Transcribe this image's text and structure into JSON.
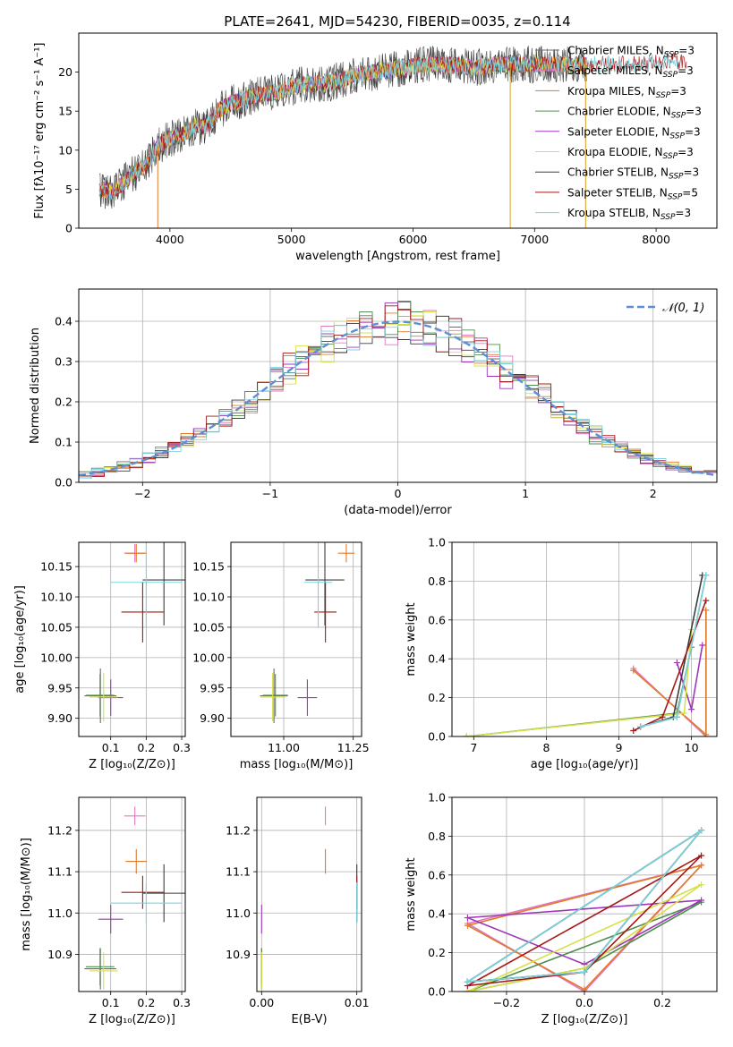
{
  "chart_data": [
    {
      "type": "line",
      "title": "PLATE=2641, MJD=54230, FIBERID=0035, z=0.114",
      "xlabel": "wavelength [Angstrom, rest frame]",
      "ylabel": "Flux [fλ10⁻¹⁷ erg cm⁻² s⁻¹ A⁻¹]",
      "xlim": [
        3250,
        8500
      ],
      "ylim": [
        0,
        25
      ],
      "xticks": [
        "4000",
        "5000",
        "6000",
        "7000",
        "8000"
      ],
      "yticks": [
        "0",
        "5",
        "10",
        "15",
        "20"
      ],
      "spectrum_envelope": {
        "x": [
          3420,
          3500,
          3600,
          3700,
          3800,
          3900,
          4000,
          4100,
          4200,
          4300,
          4400,
          4500,
          4700,
          4900,
          5100,
          5300,
          5500,
          5700,
          5900,
          6100,
          6300,
          6500,
          6700,
          6900,
          7100,
          7300,
          7500,
          7700,
          7900,
          8100,
          8250
        ],
        "y": [
          5.0,
          4.6,
          5.5,
          7.0,
          8.0,
          10.5,
          11.5,
          12.0,
          13.0,
          13.0,
          15.0,
          16.0,
          17.0,
          17.5,
          18.5,
          18.5,
          19.5,
          20.0,
          20.5,
          21.0,
          21.0,
          20.5,
          21.0,
          21.0,
          21.0,
          21.0,
          21.0,
          21.0,
          21.0,
          21.5,
          21.5
        ]
      },
      "dips": [
        3900,
        6800,
        7420
      ],
      "series": [
        {
          "name": "Chabrier MILES, N_SSP=3"
        },
        {
          "name": "Salpeter MILES, N_SSP=3"
        },
        {
          "name": "Kroupa MILES, N_SSP=3"
        },
        {
          "name": "Chabrier ELODIE, N_SSP=3"
        },
        {
          "name": "Salpeter ELODIE, N_SSP=3"
        },
        {
          "name": "Kroupa ELODIE, N_SSP=3"
        },
        {
          "name": "Chabrier STELIB, N_SSP=3"
        },
        {
          "name": "Salpeter STELIB, N_SSP=5"
        },
        {
          "name": "Kroupa STELIB, N_SSP=3"
        }
      ],
      "legend": "right"
    },
    {
      "type": "line",
      "xlabel": "(data-model)/error",
      "ylabel": "Normed distribution",
      "xlim": [
        -2.5,
        2.5
      ],
      "ylim": [
        0,
        0.48
      ],
      "xticks": [
        "−2",
        "−1",
        "0",
        "1",
        "2"
      ],
      "yticks": [
        "0.0",
        "0.1",
        "0.2",
        "0.3",
        "0.4"
      ],
      "grid": true,
      "legend": "𝒩(0, 1)",
      "legend_position": "top-right"
    },
    {
      "type": "scatter",
      "xlabel": "Z [log₁₀(Z/Z⊙)]",
      "ylabel": "age  [log₁₀(age/yr)]",
      "xlim": [
        0.01,
        0.31
      ],
      "ylim": [
        9.87,
        10.19
      ],
      "xticks": [
        "0.1",
        "0.2",
        "0.3"
      ],
      "yticks": [
        "9.90",
        "9.95",
        "10.00",
        "10.05",
        "10.10",
        "10.15"
      ],
      "grid": true
    },
    {
      "type": "scatter",
      "xlabel": "mass [log₁₀(M/M⊙)]",
      "xlim": [
        10.81,
        11.28
      ],
      "ylim": [
        9.87,
        10.19
      ],
      "xticks": [
        "11.00",
        "11.25"
      ],
      "yticks": [
        "9.90",
        "9.95",
        "10.00",
        "10.05",
        "10.10",
        "10.15"
      ],
      "grid": true
    },
    {
      "type": "line",
      "xlabel": "age  [log₁₀(age/yr)]",
      "ylabel": "mass weight",
      "xlim": [
        6.7,
        10.35
      ],
      "ylim": [
        0,
        1
      ],
      "xticks": [
        "7",
        "8",
        "9",
        "10"
      ],
      "yticks": [
        "0.0",
        "0.2",
        "0.4",
        "0.6",
        "0.8",
        "1.0"
      ],
      "grid": true
    },
    {
      "type": "scatter",
      "xlabel": "Z [log₁₀(Z/Z⊙)]",
      "ylabel": "mass [log₁₀(M/M⊙)]",
      "xlim": [
        0.01,
        0.31
      ],
      "ylim": [
        10.81,
        11.28
      ],
      "xticks": [
        "0.1",
        "0.2",
        "0.3"
      ],
      "yticks": [
        "10.9",
        "11.0",
        "11.1",
        "11.2"
      ],
      "grid": true
    },
    {
      "type": "scatter",
      "xlabel": "E(B-V)",
      "xlim": [
        -0.0005,
        0.0105
      ],
      "ylim": [
        10.81,
        11.28
      ],
      "xticks": [
        "0.00",
        "0.01"
      ],
      "yticks": [
        "10.9",
        "11.0",
        "11.1",
        "11.2"
      ],
      "grid": true
    },
    {
      "type": "line",
      "xlabel": "Z [log₁₀(Z/Z⊙)]",
      "ylabel": "mass weight",
      "xlim": [
        -0.34,
        0.34
      ],
      "ylim": [
        0,
        1
      ],
      "xticks": [
        "−0.2",
        "0.0",
        "0.2"
      ],
      "yticks": [
        "0.0",
        "0.2",
        "0.4",
        "0.6",
        "0.8",
        "1.0"
      ],
      "grid": true
    }
  ],
  "series_colors": [
    "#6b6b6b",
    "#e377c2",
    "#e07b2a",
    "#4f8f4f",
    "#9e37b8",
    "#d6e04a",
    "#3c3c3c",
    "#a31818",
    "#7ad4df"
  ],
  "normal_curve_color": "#5b8fd6",
  "fits": [
    {
      "Z": 0.071,
      "age": 9.937,
      "mass": 10.865,
      "ebv": 0.0,
      "dZ": 0.045,
      "dage": 0.09,
      "dmass": 0.1,
      "ages": [
        9.3,
        9.8,
        10.2
      ],
      "Zs": [
        -0.3,
        0.0,
        0.3
      ],
      "w": [
        0.05,
        0.1,
        0.83
      ]
    },
    {
      "Z": 0.168,
      "age": 10.172,
      "mass": 11.235,
      "ebv": 0.0067,
      "dZ": 0.03,
      "dage": 0.03,
      "dmass": 0.045,
      "ages": [
        9.2,
        10.2,
        10.2
      ],
      "Zs": [
        -0.3,
        0.0,
        0.3
      ],
      "w": [
        0.35,
        0.0,
        0.65
      ]
    },
    {
      "Z": 0.172,
      "age": 10.172,
      "mass": 11.125,
      "ebv": 0.0067,
      "dZ": 0.03,
      "dage": 0.03,
      "dmass": 0.06,
      "ages": [
        9.2,
        10.2,
        10.2
      ],
      "Zs": [
        -0.3,
        0.0,
        0.3
      ],
      "w": [
        0.34,
        0.01,
        0.65
      ]
    },
    {
      "Z": 0.07,
      "age": 9.938,
      "mass": 10.87,
      "ebv": 0.0,
      "dZ": 0.04,
      "dage": 0.07,
      "dmass": 0.09,
      "ages": [
        6.9,
        9.8,
        10.0
      ],
      "Zs": [
        -0.3,
        0.0,
        0.3
      ],
      "w": [
        0.0,
        0.12,
        0.46
      ]
    },
    {
      "Z": 0.1,
      "age": 9.934,
      "mass": 10.985,
      "ebv": 0.0,
      "dZ": 0.035,
      "dage": 0.06,
      "dmass": 0.07,
      "ages": [
        9.8,
        10.0,
        10.15
      ],
      "Zs": [
        -0.3,
        0.0,
        0.3
      ],
      "w": [
        0.38,
        0.14,
        0.47
      ]
    },
    {
      "Z": 0.08,
      "age": 9.935,
      "mass": 10.86,
      "ebv": 0.0,
      "dZ": 0.04,
      "dage": 0.08,
      "dmass": 0.09,
      "ages": [
        6.9,
        9.9,
        10.0
      ],
      "Zs": [
        -0.3,
        0.0,
        0.3
      ],
      "w": [
        0.0,
        0.12,
        0.55
      ]
    },
    {
      "Z": 0.25,
      "age": 10.128,
      "mass": 11.048,
      "ebv": 0.01,
      "dZ": 0.06,
      "dage": 0.15,
      "dmass": 0.14,
      "ages": [
        9.3,
        9.75,
        10.15
      ],
      "Zs": [
        -0.3,
        0.0,
        0.3
      ],
      "w": [
        0.05,
        0.1,
        0.83
      ]
    },
    {
      "Z": 0.19,
      "age": 10.075,
      "mass": 11.05,
      "ebv": 0.01,
      "dZ": 0.06,
      "dage": 0.1,
      "dmass": 0.08,
      "ages": [
        9.2,
        9.6,
        10.2
      ],
      "Zs": [
        -0.3,
        0.0,
        0.3
      ],
      "w": [
        0.03,
        0.1,
        0.7
      ]
    },
    {
      "Z": 0.2,
      "age": 10.124,
      "mass": 11.024,
      "ebv": 0.01,
      "dZ": 0.1,
      "dage": 0.15,
      "dmass": 0.1,
      "ages": [
        9.3,
        9.8,
        10.2
      ],
      "Zs": [
        -0.3,
        0.0,
        0.3
      ],
      "w": [
        0.05,
        0.1,
        0.83
      ]
    }
  ]
}
